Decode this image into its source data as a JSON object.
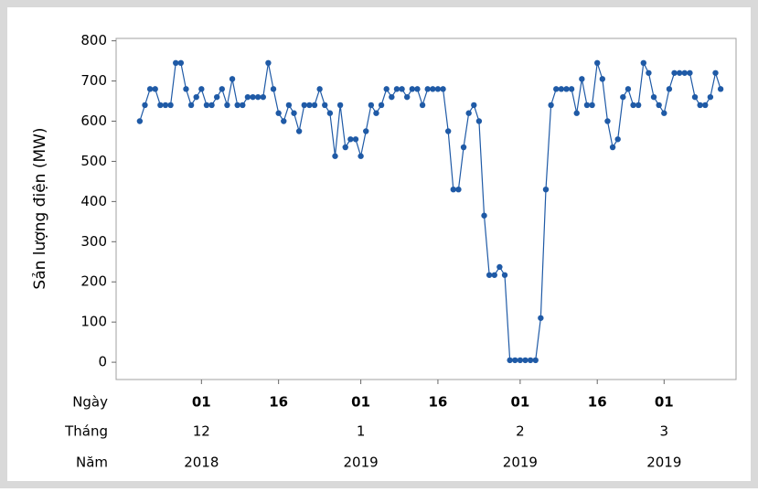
{
  "chart_data": {
    "type": "line",
    "ylabel": "Sản lượng điện (MW)",
    "values": [
      600,
      640,
      680,
      680,
      640,
      640,
      640,
      745,
      745,
      680,
      640,
      660,
      680,
      640,
      640,
      660,
      680,
      640,
      705,
      640,
      640,
      660,
      660,
      660,
      660,
      745,
      680,
      620,
      600,
      640,
      620,
      575,
      640,
      640,
      640,
      680,
      640,
      620,
      513,
      640,
      535,
      555,
      555,
      513,
      575,
      640,
      620,
      640,
      680,
      660,
      680,
      680,
      660,
      680,
      680,
      640,
      680,
      680,
      680,
      680,
      575,
      430,
      430,
      535,
      620,
      640,
      600,
      365,
      217,
      217,
      237,
      217,
      5,
      5,
      5,
      5,
      5,
      5,
      110,
      430,
      640,
      680,
      680,
      680,
      680,
      620,
      705,
      640,
      640,
      745,
      705,
      600,
      535,
      555,
      660,
      680,
      640,
      640,
      745,
      720,
      660,
      640,
      620,
      680,
      720,
      720,
      720,
      720,
      660,
      640,
      640,
      660,
      720,
      680
    ],
    "color": "#1f5aa6",
    "xlim": [
      -4.6,
      116
    ],
    "ylim": [
      -43,
      806
    ],
    "yticks": [
      0,
      100,
      200,
      300,
      400,
      500,
      600,
      700,
      800
    ],
    "x_row_titles": [
      "Ngày",
      "Tháng",
      "Năm"
    ],
    "xticks": [
      {
        "value": 12,
        "label": "01"
      },
      {
        "value": 27,
        "label": "16"
      },
      {
        "value": 43,
        "label": "01"
      },
      {
        "value": 58,
        "label": "16"
      },
      {
        "value": 74,
        "label": "01"
      },
      {
        "value": 89,
        "label": "16"
      },
      {
        "value": 102,
        "label": "01"
      }
    ],
    "months": [
      {
        "value": 12,
        "label": "12"
      },
      {
        "value": 43,
        "label": "1"
      },
      {
        "value": 74,
        "label": "2"
      },
      {
        "value": 102,
        "label": "3"
      }
    ],
    "years": [
      {
        "value": 12,
        "label": "2018"
      },
      {
        "value": 43,
        "label": "2019"
      },
      {
        "value": 74,
        "label": "2019"
      },
      {
        "value": 102,
        "label": "2019"
      }
    ]
  }
}
